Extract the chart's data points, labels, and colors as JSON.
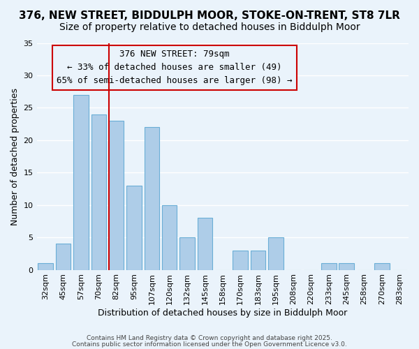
{
  "title1": "376, NEW STREET, BIDDULPH MOOR, STOKE-ON-TRENT, ST8 7LR",
  "title2": "Size of property relative to detached houses in Biddulph Moor",
  "xlabel": "Distribution of detached houses by size in Biddulph Moor",
  "ylabel": "Number of detached properties",
  "bar_labels": [
    "32sqm",
    "45sqm",
    "57sqm",
    "70sqm",
    "82sqm",
    "95sqm",
    "107sqm",
    "120sqm",
    "132sqm",
    "145sqm",
    "158sqm",
    "170sqm",
    "183sqm",
    "195sqm",
    "208sqm",
    "220sqm",
    "233sqm",
    "245sqm",
    "258sqm",
    "270sqm",
    "283sqm"
  ],
  "bar_values": [
    1,
    4,
    27,
    24,
    23,
    13,
    22,
    10,
    5,
    8,
    0,
    3,
    3,
    5,
    0,
    0,
    1,
    1,
    0,
    1,
    0
  ],
  "bar_color": "#aecde8",
  "bar_edge_color": "#6aaed6",
  "background_color": "#eaf3fb",
  "grid_color": "#ffffff",
  "annotation_text": "376 NEW STREET: 79sqm\n← 33% of detached houses are smaller (49)\n65% of semi-detached houses are larger (98) →",
  "annotation_box_edge_color": "#cc0000",
  "vline_x_index": 4,
  "vline_color": "#cc0000",
  "ylim": [
    0,
    35
  ],
  "yticks": [
    0,
    5,
    10,
    15,
    20,
    25,
    30,
    35
  ],
  "footer1": "Contains HM Land Registry data © Crown copyright and database right 2025.",
  "footer2": "Contains public sector information licensed under the Open Government Licence v3.0.",
  "title_fontsize": 11,
  "subtitle_fontsize": 10,
  "axis_label_fontsize": 9,
  "tick_fontsize": 8,
  "annotation_fontsize": 9
}
